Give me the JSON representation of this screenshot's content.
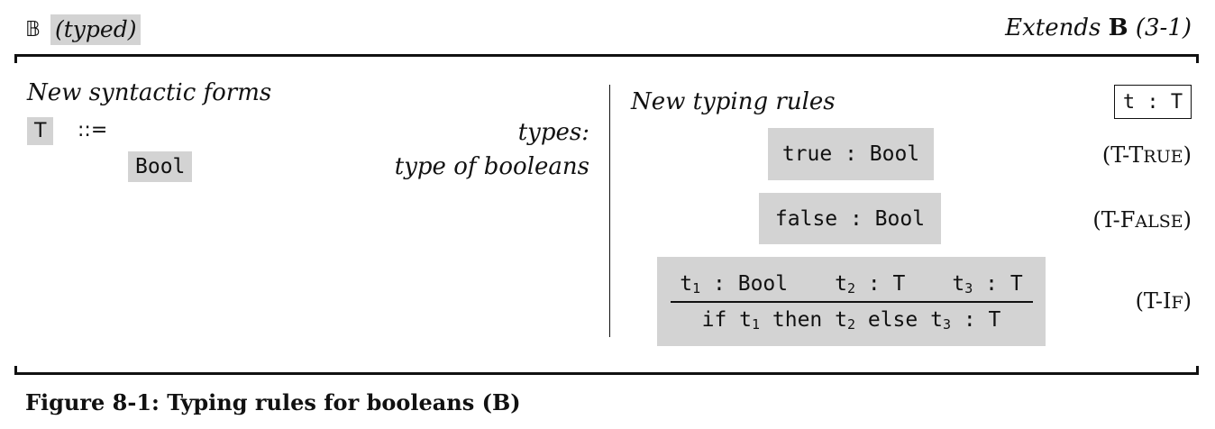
{
  "header": {
    "system_symbol": "𝔹",
    "system_tag": "(typed)",
    "extends_prefix": "Extends ",
    "extends_name": "B",
    "extends_ref": " (3-1)"
  },
  "syntax": {
    "title": "New syntactic forms",
    "metavar": "T",
    "defeq": "::=",
    "category": "types:",
    "form": "Bool",
    "form_desc": "type of booleans"
  },
  "typing": {
    "title": "New typing rules",
    "judgment": "t : T",
    "rules": {
      "true": {
        "conclusion": "true : Bool",
        "name_prefix": "(T-",
        "name_first": "T",
        "name_rest": "RUE",
        "name_suffix": ")"
      },
      "false": {
        "conclusion": "false : Bool",
        "name_prefix": "(T-",
        "name_first": "F",
        "name_rest": "ALSE",
        "name_suffix": ")"
      },
      "if": {
        "premise1_term": "t",
        "premise1_sub": "1",
        "premise1_type": " : Bool",
        "premise2_term": "t",
        "premise2_sub": "2",
        "premise2_type": " : T",
        "premise3_term": "t",
        "premise3_sub": "3",
        "premise3_type": " : T",
        "concl_if": "if ",
        "concl_t1": "t",
        "concl_s1": "1",
        "concl_then": " then ",
        "concl_t2": "t",
        "concl_s2": "2",
        "concl_else": " else ",
        "concl_t3": "t",
        "concl_s3": "3",
        "concl_type": " : T",
        "name_prefix": "(T-",
        "name_first": "I",
        "name_rest": "F",
        "name_suffix": ")"
      }
    }
  },
  "caption": "Figure 8-1: Typing rules for booleans (B)"
}
